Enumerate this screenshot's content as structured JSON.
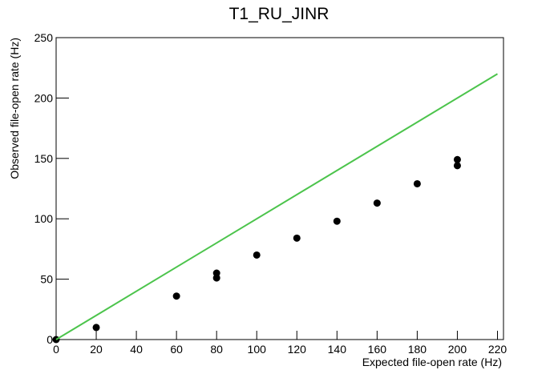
{
  "chart_data": {
    "type": "scatter",
    "title": "T1_RU_JINR",
    "x_label": "Expected file-open rate (Hz)",
    "y_label": "Observed file-open rate (Hz)",
    "series": [
      {
        "type": "scatter",
        "color": "#000000",
        "x": [
          0,
          20,
          60,
          80,
          80,
          100,
          120,
          140,
          160,
          180,
          200,
          200
        ],
        "values": [
          0,
          10,
          36,
          51,
          55,
          70,
          84,
          98,
          113,
          129,
          144,
          149
        ]
      },
      {
        "type": "line",
        "color": "#4cc44c",
        "x": [
          0,
          220
        ],
        "values": [
          0,
          220
        ]
      }
    ],
    "xlim": [
      0,
      223
    ],
    "xticks": [
      0,
      20,
      40,
      60,
      80,
      100,
      120,
      140,
      160,
      180,
      200,
      220
    ],
    "ylim": [
      0,
      250
    ],
    "yticks": [
      0,
      50,
      100,
      150,
      200,
      250
    ]
  }
}
